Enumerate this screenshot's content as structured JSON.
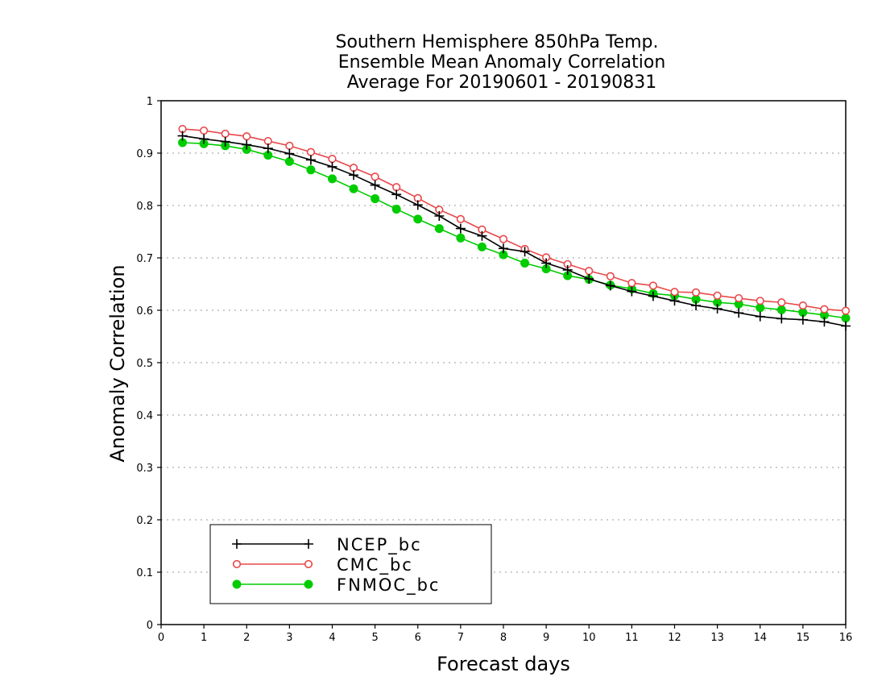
{
  "chart_data": {
    "type": "line",
    "title": [
      "Southern Hemisphere 850hPa Temp.",
      "Ensemble Mean Anomaly Correlation",
      "Average For 20190601 - 20190831"
    ],
    "xlabel": "Forecast days",
    "ylabel": "Anomaly Correlation",
    "xlim": [
      0,
      16
    ],
    "ylim": [
      0,
      1
    ],
    "x_ticks": [
      "0",
      "1",
      "2",
      "3",
      "4",
      "5",
      "6",
      "7",
      "8",
      "9",
      "10",
      "11",
      "12",
      "13",
      "14",
      "15",
      "16"
    ],
    "y_ticks": [
      "0",
      "0.1",
      "0.2",
      "0.3",
      "0.4",
      "0.5",
      "0.6",
      "0.7",
      "0.8",
      "0.9",
      "1"
    ],
    "grid": "horizontal dotted",
    "legend_position": "bottom-left",
    "x": [
      0.5,
      1,
      1.5,
      2,
      2.5,
      3,
      3.5,
      4,
      4.5,
      5,
      5.5,
      6,
      6.5,
      7,
      7.5,
      8,
      8.5,
      9,
      9.5,
      10,
      10.5,
      11,
      11.5,
      12,
      12.5,
      13,
      13.5,
      14,
      14.5,
      15,
      15.5,
      16
    ],
    "series": [
      {
        "name": "NCEP_bc",
        "color": "#000000",
        "marker": "plus",
        "values": [
          0.933,
          0.927,
          0.922,
          0.916,
          0.909,
          0.899,
          0.887,
          0.874,
          0.858,
          0.839,
          0.821,
          0.801,
          0.78,
          0.756,
          0.742,
          0.718,
          0.712,
          0.69,
          0.677,
          0.66,
          0.647,
          0.636,
          0.627,
          0.618,
          0.609,
          0.603,
          0.595,
          0.588,
          0.584,
          0.582,
          0.578,
          0.57
        ]
      },
      {
        "name": "CMC_bc",
        "color": "#e8484a",
        "marker": "open-circle",
        "values": [
          0.946,
          0.943,
          0.937,
          0.932,
          0.923,
          0.914,
          0.902,
          0.889,
          0.872,
          0.855,
          0.835,
          0.814,
          0.792,
          0.774,
          0.754,
          0.736,
          0.717,
          0.701,
          0.688,
          0.675,
          0.665,
          0.652,
          0.647,
          0.635,
          0.634,
          0.628,
          0.623,
          0.618,
          0.615,
          0.609,
          0.602,
          0.599
        ]
      },
      {
        "name": "FNMOC_bc",
        "color": "#00cc00",
        "marker": "filled-circle",
        "values": [
          0.92,
          0.918,
          0.914,
          0.907,
          0.896,
          0.884,
          0.868,
          0.851,
          0.832,
          0.813,
          0.793,
          0.774,
          0.756,
          0.738,
          0.721,
          0.706,
          0.69,
          0.679,
          0.666,
          0.659,
          0.648,
          0.641,
          0.632,
          0.628,
          0.621,
          0.615,
          0.612,
          0.605,
          0.601,
          0.596,
          0.591,
          0.585
        ]
      }
    ]
  }
}
